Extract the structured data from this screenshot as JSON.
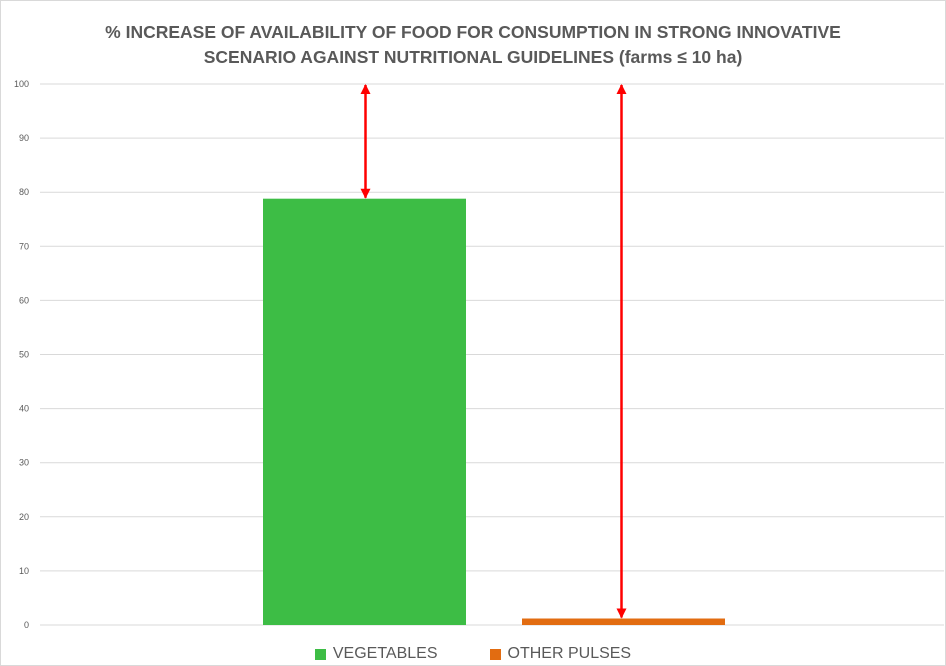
{
  "chart_data": {
    "type": "bar",
    "title_lines": [
      "% INCREASE OF AVAILABILITY OF FOOD FOR CONSUMPTION IN STRONG INNOVATIVE",
      "SCENARIO AGAINST NUTRITIONAL GUIDELINES (farms ≤ 10 ha)"
    ],
    "xlabel": "",
    "ylabel": "",
    "ylim": [
      0,
      100
    ],
    "yticks": [
      0,
      10,
      20,
      30,
      40,
      50,
      60,
      70,
      80,
      90,
      100
    ],
    "grid": true,
    "legend_position": "bottom",
    "series": [
      {
        "name": "VEGETABLES",
        "values": [
          78.8
        ],
        "color": "#3dbd45"
      },
      {
        "name": "OTHER PULSES",
        "values": [
          1.2
        ],
        "color": "#e26c11"
      }
    ],
    "annotations": [
      {
        "type": "double-arrow",
        "series": "VEGETABLES",
        "from": 78.8,
        "to": 100,
        "color": "#ff0000"
      },
      {
        "type": "double-arrow",
        "series": "OTHER PULSES",
        "from": 1.2,
        "to": 100,
        "color": "#ff0000"
      }
    ]
  }
}
